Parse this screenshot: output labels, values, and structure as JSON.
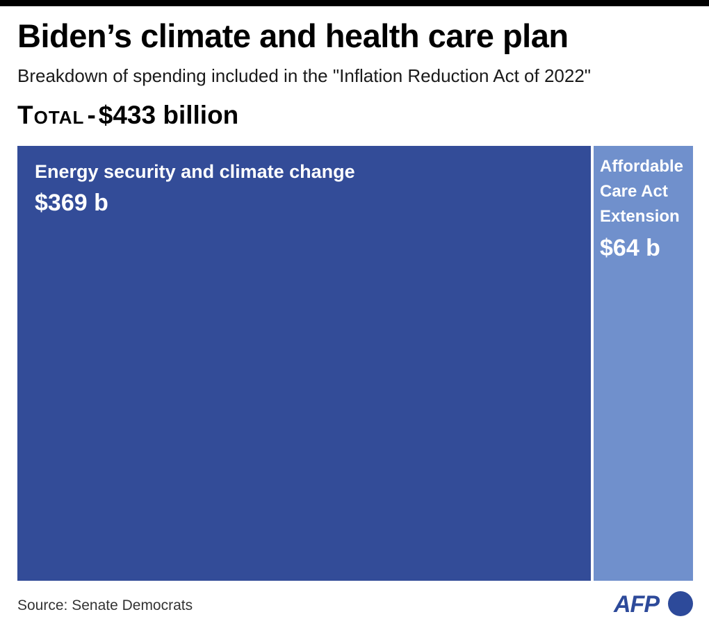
{
  "title": "Biden’s climate and health care plan",
  "subtitle": "Breakdown of spending included in the \"Inflation Reduction Act of 2022\"",
  "total": {
    "label": "Total",
    "separator": "-",
    "value": "$433 billion"
  },
  "chart_data": {
    "type": "treemap",
    "total": 433,
    "unit": "billion $",
    "categories": [
      "Energy security and climate change",
      "Affordable Care Act Extension"
    ],
    "values": [
      369,
      64
    ],
    "value_labels": [
      "$369 b",
      "$64 b"
    ],
    "colors": [
      "#334c98",
      "#7090cc"
    ]
  },
  "source": "Source: Senate Democrats",
  "logo_text": "AFP"
}
